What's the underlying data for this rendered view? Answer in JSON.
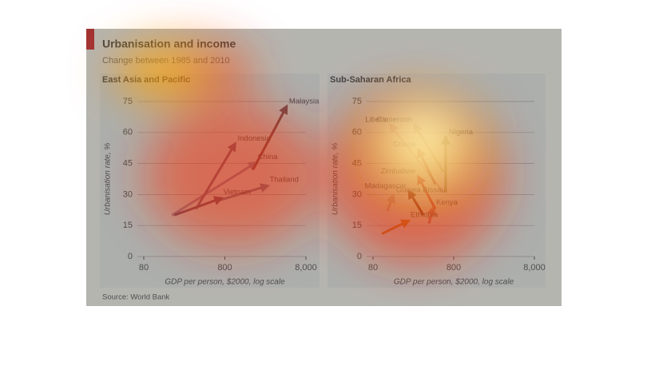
{
  "header": {
    "title": "Urbanisation and income",
    "subtitle": "Change between 1985 and 2010",
    "source": "Source: World Bank"
  },
  "chart_data": [
    {
      "type": "arrow",
      "title": "East Asia and Pacific",
      "x_label": "GDP per person, $2000, log scale",
      "y_label": "Urbanisation rate, %",
      "x_log": true,
      "xlim": [
        80,
        8000
      ],
      "xticks": [
        80,
        800,
        {
          "value": 8000,
          "label": "8,000"
        }
      ],
      "ylim": [
        0,
        75
      ],
      "yticks": [
        0,
        15,
        30,
        45,
        60,
        75
      ],
      "grid": true,
      "series": [
        {
          "name": "China",
          "color": "#8a7a9e",
          "x": [
            178,
            1860
          ],
          "values": [
            20,
            45
          ]
        },
        {
          "name": "Indonesia",
          "color": "#6e4a6e",
          "x": [
            352,
            1050
          ],
          "values": [
            23,
            54
          ]
        },
        {
          "name": "Malaysia",
          "color": "#6b2a2a",
          "x": [
            1780,
            4530
          ],
          "values": [
            42,
            72
          ]
        },
        {
          "name": "Thailand",
          "color": "#6a6a8a",
          "x": [
            655,
            2600
          ],
          "values": [
            27,
            34
          ]
        },
        {
          "name": "Vietnam",
          "color": "#5a3050",
          "x": [
            190,
            700
          ],
          "values": [
            20,
            28
          ]
        }
      ]
    },
    {
      "type": "arrow",
      "title": "Sub-Saharan Africa",
      "x_label": "GDP per person, $2000, log scale",
      "y_label": "Urbanisation rate, %",
      "x_log": true,
      "xlim": [
        80,
        8000
      ],
      "xticks": [
        80,
        800,
        {
          "value": 8000,
          "label": "8,000"
        }
      ],
      "ylim": [
        0,
        75
      ],
      "yticks": [
        0,
        15,
        30,
        45,
        60,
        75
      ],
      "grid": true,
      "series": [
        {
          "name": "Liberia",
          "color": "#c8a0a0",
          "x": [
            595,
            135
          ],
          "values": [
            31,
            63
          ]
        },
        {
          "name": "Cameroon",
          "color": "#b09a6a",
          "x": [
            595,
            268
          ],
          "values": [
            41,
            63
          ]
        },
        {
          "name": "Nigeria",
          "color": "#7a7a3a",
          "x": [
            636,
            636
          ],
          "values": [
            31,
            57
          ]
        },
        {
          "name": "Ghana",
          "color": "#a03020",
          "x": [
            473,
            297
          ],
          "values": [
            35,
            51
          ]
        },
        {
          "name": "Madagascar",
          "color": "#600000",
          "x": [
            337,
            228
          ],
          "values": [
            20,
            31
          ]
        },
        {
          "name": "Zimbabwe",
          "color": "#c02020",
          "x": [
            473,
            297
          ],
          "values": [
            23,
            38
          ]
        },
        {
          "name": "Kenya",
          "color": "#c06060",
          "x": [
            395,
            442
          ],
          "values": [
            16,
            23
          ]
        },
        {
          "name": "Guinea Bissau",
          "color": "#c0a090",
          "x": [
            120,
            141
          ],
          "values": [
            22,
            29
          ]
        },
        {
          "name": "Ethiopia",
          "color": "#d07000",
          "x": [
            103,
            213
          ],
          "values": [
            11,
            17
          ]
        }
      ]
    }
  ]
}
